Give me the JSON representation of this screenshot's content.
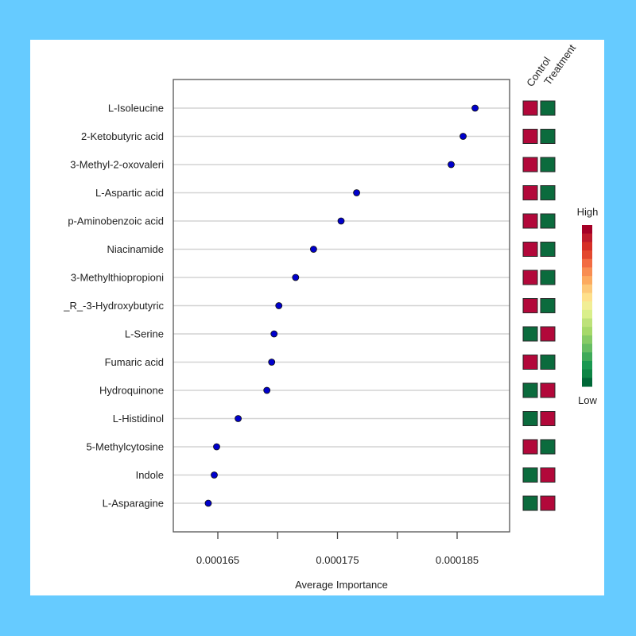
{
  "chart_data": {
    "type": "scatter",
    "subtype": "dot-plot",
    "title": "",
    "xlabel": "Average Importance",
    "ylabel": "",
    "xlim": [
      0.0001612,
      0.0001894
    ],
    "grid": "horizontal",
    "x_ticks": [
      0.000165,
      0.00017,
      0.000175,
      0.00018,
      0.000185
    ],
    "x_tick_labels": [
      "0.000165",
      "",
      "0.000175",
      "",
      "0.000185"
    ],
    "categories": [
      "L-Isoleucine",
      "2-Ketobutyric acid",
      "3-Methyl-2-oxovaleri",
      "L-Aspartic acid",
      "p-Aminobenzoic acid",
      "Niacinamide",
      "3-Methylthiopropioni",
      "_R_-3-Hydroxybutyric",
      "L-Serine",
      "Fumaric acid",
      "Hydroquinone",
      "L-Histidinol",
      "5-Methylcytosine",
      "Indole",
      "L-Asparagine"
    ],
    "values": [
      0.0001865,
      0.0001855,
      0.0001845,
      0.0001766,
      0.0001753,
      0.000173,
      0.0001715,
      0.0001701,
      0.0001697,
      0.0001695,
      0.0001691,
      0.0001667,
      0.0001649,
      0.0001647,
      0.0001642
    ],
    "point_color": "#0000CC",
    "heatmap": {
      "columns": [
        "Control",
        "Treatment"
      ],
      "levels": [
        [
          "high",
          "low"
        ],
        [
          "high",
          "low"
        ],
        [
          "high",
          "low"
        ],
        [
          "high",
          "low"
        ],
        [
          "high",
          "low"
        ],
        [
          "high",
          "low"
        ],
        [
          "high",
          "low"
        ],
        [
          "high",
          "low"
        ],
        [
          "low",
          "high"
        ],
        [
          "high",
          "low"
        ],
        [
          "low",
          "high"
        ],
        [
          "low",
          "high"
        ],
        [
          "high",
          "low"
        ],
        [
          "low",
          "high"
        ],
        [
          "low",
          "high"
        ]
      ],
      "colors": {
        "high": "#B2083A",
        "low": "#0B6B3D"
      }
    },
    "color_legend": {
      "high_label": "High",
      "low_label": "Low",
      "gradient": [
        "#A50026",
        "#BE1A2B",
        "#D62F27",
        "#E3482F",
        "#F26C43",
        "#F88D52",
        "#FCAA5F",
        "#FDC878",
        "#FEE08B",
        "#F1EE95",
        "#D9EF8B",
        "#BDE27A",
        "#A6D96A",
        "#86CB66",
        "#66BD63",
        "#3FAA59",
        "#1A9850",
        "#0D8544",
        "#006837"
      ]
    }
  }
}
